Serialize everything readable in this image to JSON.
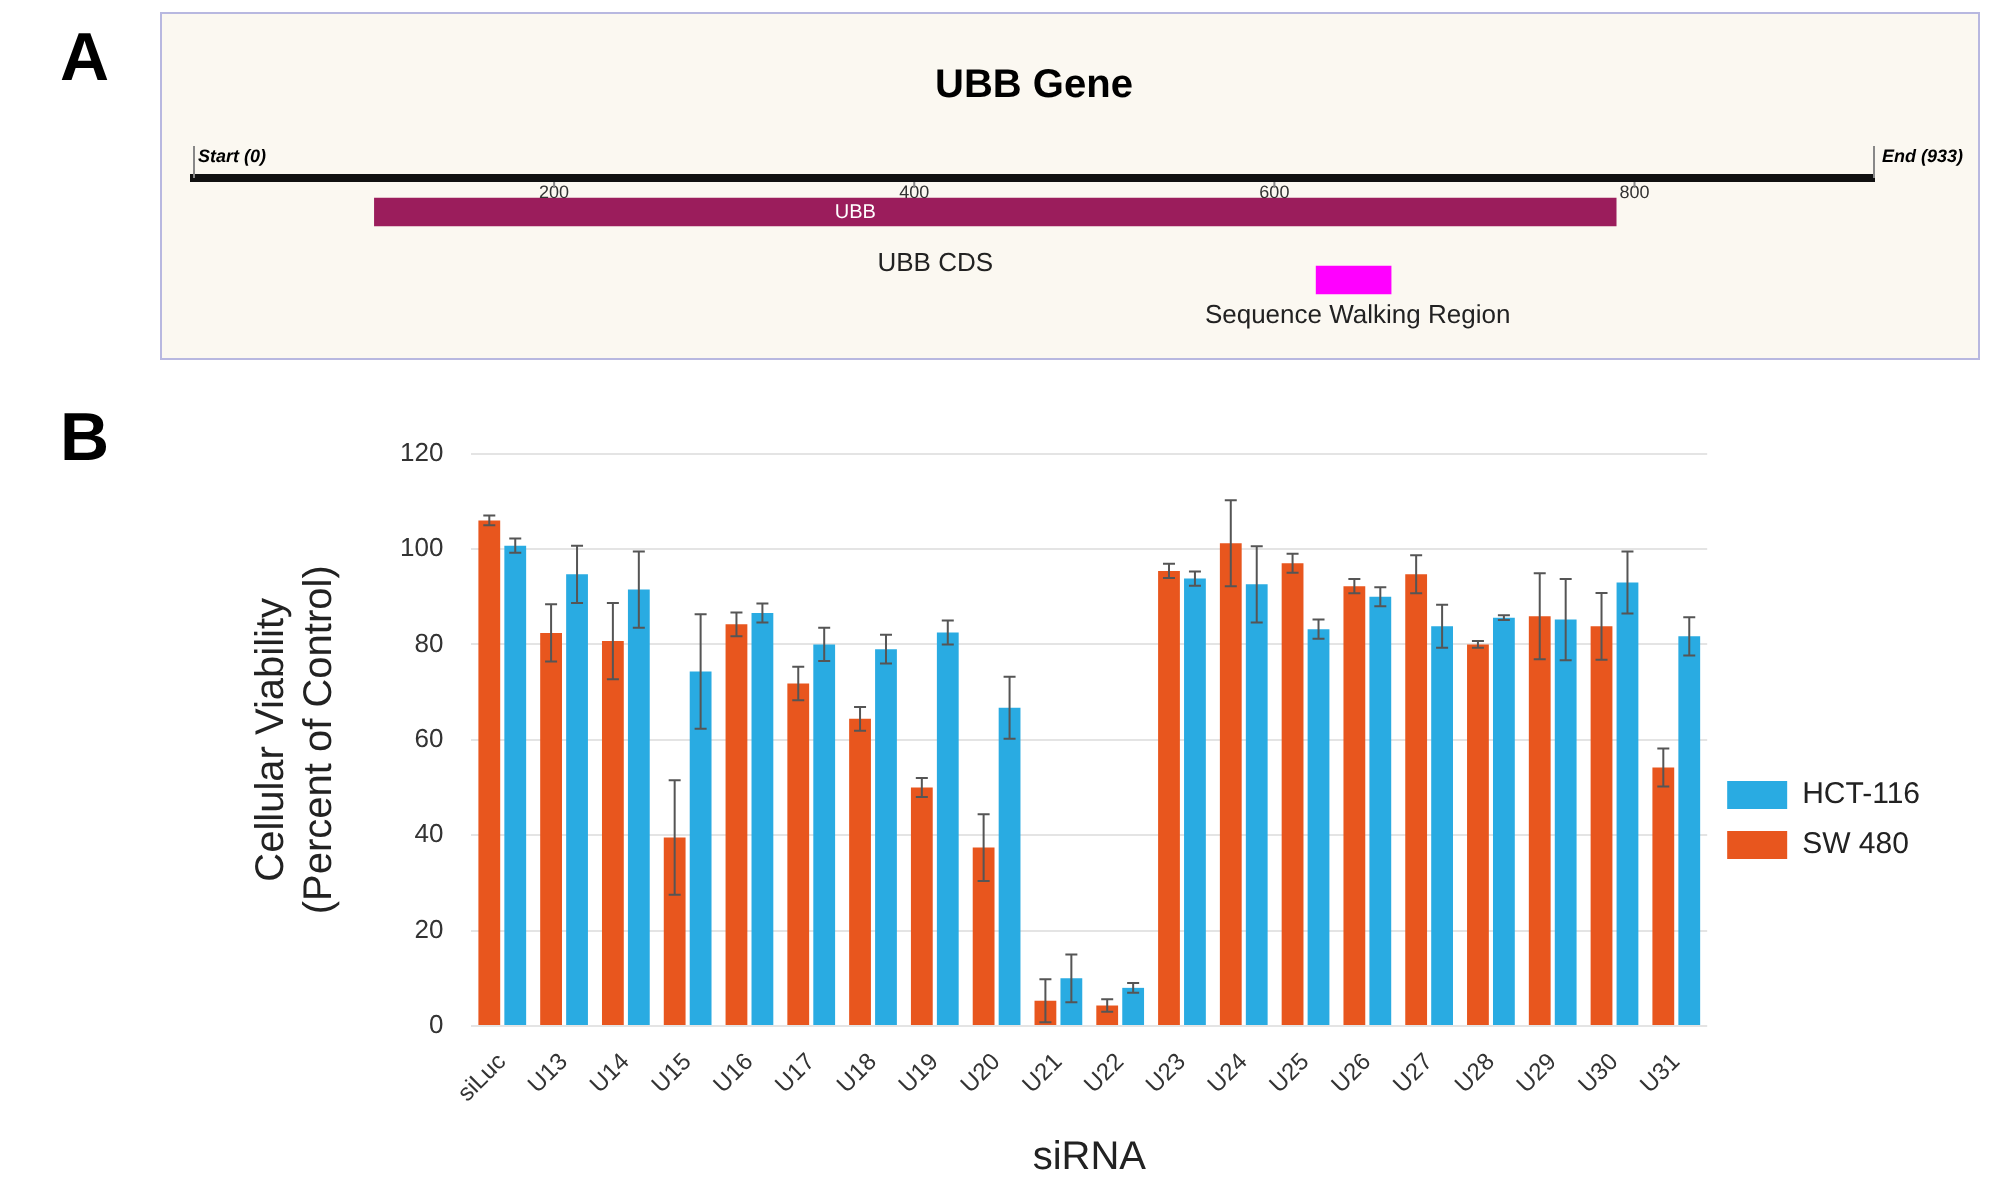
{
  "chart_data": [
    {
      "type": "bar",
      "orientation": "horizontal",
      "title": "UBB Gene",
      "categories": [
        null,
        null
      ],
      "values": [
        690,
        42
      ],
      "base": [
        100,
        623
      ],
      "colors": [
        "#9b1d5c",
        "#ff00ff"
      ],
      "xlim": [
        0,
        933
      ],
      "xticks": [
        200,
        400,
        600,
        800
      ],
      "tick_labels": "x",
      "annotations": [
        "A",
        "Start (0)",
        "End (933)",
        "UBB",
        "UBB CDS",
        "Sequence Walking Region"
      ]
    },
    {
      "type": "bar",
      "xlabel": "siRNA",
      "ylabel": "Cellular Viability (Percent of Control)",
      "annotations": [
        "B"
      ],
      "categories": [
        "siLuc",
        "U13",
        "U14",
        "U15",
        "U16",
        "U17",
        "U18",
        "U19",
        "U20",
        "U21",
        "U22",
        "U23",
        "U24",
        "U25",
        "U26",
        "U27",
        "U28",
        "U29",
        "U30",
        "U31"
      ],
      "series": [
        {
          "name": "SW 480",
          "color": "#e8561e",
          "values": [
            106,
            82.4,
            80.7,
            39.5,
            84.2,
            71.8,
            64.4,
            50,
            37.4,
            5.3,
            4.3,
            95.4,
            101.2,
            97,
            92.2,
            94.7,
            80,
            85.9,
            83.8,
            54.2
          ],
          "errors": [
            1,
            6,
            8,
            12,
            2.5,
            3.5,
            2.5,
            2,
            7,
            4.5,
            1.3,
            1.5,
            9,
            2,
            1.5,
            4,
            0.7,
            9,
            7,
            4
          ]
        },
        {
          "name": "HCT-116",
          "color": "#29abe2",
          "values": [
            100.7,
            94.7,
            91.5,
            74.3,
            86.6,
            80,
            79,
            82.5,
            66.7,
            10,
            8,
            93.8,
            92.6,
            83.2,
            90,
            83.8,
            85.6,
            85.2,
            93,
            81.7
          ],
          "errors": [
            1.5,
            6,
            8,
            12,
            2,
            3.5,
            3,
            2.5,
            6.5,
            5,
            1,
            1.5,
            8,
            2,
            2,
            4.5,
            0.5,
            8.5,
            6.5,
            4
          ]
        }
      ],
      "ylim": [
        0,
        120
      ],
      "yticks": [
        0,
        20,
        40,
        60,
        80,
        100,
        120
      ],
      "grid": "y",
      "legend": "right"
    }
  ]
}
